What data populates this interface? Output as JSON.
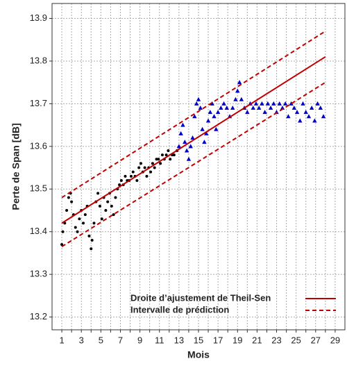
{
  "chart_data": {
    "type": "scatter",
    "xlabel": "Mois",
    "ylabel": "Perte de Span [dB]",
    "xlim": [
      0,
      30
    ],
    "ylim": [
      13.17,
      13.935
    ],
    "xticks": [
      1,
      3,
      5,
      7,
      9,
      11,
      13,
      15,
      17,
      19,
      21,
      23,
      25,
      27,
      29
    ],
    "xminor": [
      2,
      4,
      6,
      8,
      10,
      12,
      14,
      16,
      18,
      20,
      22,
      24,
      26,
      28
    ],
    "yticks": [
      13.2,
      13.3,
      13.4,
      13.5,
      13.6,
      13.7,
      13.8,
      13.9
    ],
    "grid": true,
    "legend": "lower right",
    "series": [
      {
        "marker": "circle",
        "color": "#000000",
        "x": [
          1.0,
          1.1,
          1.3,
          1.5,
          1.7,
          1.9,
          2.0,
          2.2,
          2.4,
          2.6,
          2.8,
          3.0,
          3.2,
          3.4,
          3.6,
          3.8,
          4.0,
          4.1,
          4.3,
          4.5,
          4.7,
          4.9,
          5.1,
          5.3,
          5.5,
          5.7,
          5.9,
          6.1,
          6.3,
          6.5,
          6.7,
          6.9,
          7.1,
          7.3,
          7.5,
          7.7,
          7.9,
          8.1,
          8.3,
          8.5,
          8.7,
          8.9,
          9.1,
          9.3,
          9.5,
          9.7,
          9.9,
          10.1,
          10.3,
          10.5,
          10.7,
          10.9,
          11.1,
          11.3,
          11.5,
          11.7,
          11.9,
          12.1,
          12.3,
          12.5,
          12.8
        ],
        "values": [
          13.37,
          13.4,
          13.42,
          13.45,
          13.48,
          13.49,
          13.47,
          13.44,
          13.41,
          13.4,
          13.43,
          13.45,
          13.42,
          13.44,
          13.46,
          13.39,
          13.36,
          13.38,
          13.42,
          13.47,
          13.49,
          13.46,
          13.43,
          13.48,
          13.45,
          13.47,
          13.49,
          13.46,
          13.44,
          13.48,
          13.5,
          13.51,
          13.52,
          13.51,
          13.53,
          13.52,
          13.52,
          13.53,
          13.54,
          13.53,
          13.52,
          13.55,
          13.56,
          13.54,
          13.55,
          13.53,
          13.55,
          13.54,
          13.56,
          13.55,
          13.57,
          13.57,
          13.56,
          13.58,
          13.57,
          13.58,
          13.59,
          13.57,
          13.58,
          13.58,
          13.59
        ]
      },
      {
        "marker": "triangle",
        "color": "#0000cc",
        "x": [
          13.0,
          13.2,
          13.4,
          13.6,
          13.8,
          14.0,
          14.2,
          14.4,
          14.6,
          14.8,
          15.0,
          15.2,
          15.4,
          15.6,
          15.8,
          16.0,
          16.2,
          16.4,
          16.6,
          16.8,
          17.0,
          17.3,
          17.6,
          17.9,
          18.2,
          18.5,
          18.8,
          19.0,
          19.2,
          19.4,
          19.7,
          20.0,
          20.3,
          20.6,
          20.9,
          21.2,
          21.5,
          21.8,
          22.1,
          22.4,
          22.7,
          23.0,
          23.3,
          23.6,
          23.9,
          24.2,
          24.5,
          24.8,
          25.1,
          25.4,
          25.7,
          26.0,
          26.3,
          26.6,
          26.9,
          27.2,
          27.5,
          27.8
        ],
        "values": [
          13.6,
          13.63,
          13.65,
          13.61,
          13.59,
          13.57,
          13.6,
          13.62,
          13.67,
          13.7,
          13.71,
          13.69,
          13.64,
          13.61,
          13.63,
          13.66,
          13.68,
          13.7,
          13.67,
          13.64,
          13.68,
          13.69,
          13.7,
          13.69,
          13.67,
          13.69,
          13.71,
          13.73,
          13.75,
          13.71,
          13.69,
          13.68,
          13.7,
          13.69,
          13.7,
          13.69,
          13.7,
          13.68,
          13.7,
          13.69,
          13.7,
          13.68,
          13.7,
          13.69,
          13.7,
          13.67,
          13.7,
          13.69,
          13.68,
          13.66,
          13.7,
          13.68,
          13.67,
          13.69,
          13.66,
          13.7,
          13.69,
          13.67
        ]
      },
      {
        "name": "Droite d’ajustement de Theil-Sen",
        "style": "solid",
        "color": "#c00000",
        "x": [
          1,
          28
        ],
        "values": [
          13.42,
          13.81
        ]
      },
      {
        "name": "Intervalle de prédiction",
        "style": "dashed",
        "color": "#c00000",
        "x": [
          1,
          28
        ],
        "values": [
          13.48,
          13.87
        ]
      },
      {
        "style": "dashed",
        "color": "#c00000",
        "x": [
          1,
          28
        ],
        "values": [
          13.365,
          13.75
        ]
      }
    ]
  }
}
